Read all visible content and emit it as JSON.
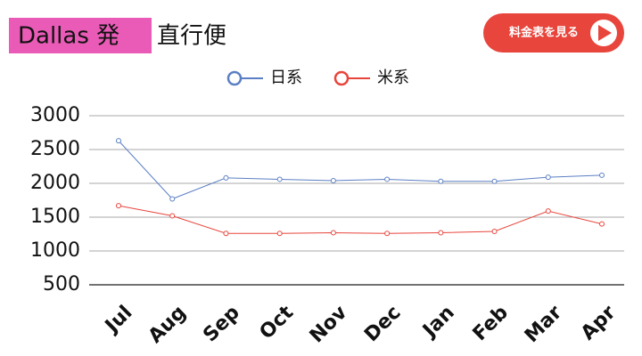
{
  "header": {
    "origin": "Dallas 発",
    "title": "直行便",
    "button": "料金表を見る"
  },
  "chart_data": {
    "type": "line",
    "categories": [
      "Jul",
      "Aug",
      "Sep",
      "Oct",
      "Nov",
      "Dec",
      "Jan",
      "Feb",
      "Mar",
      "Apr"
    ],
    "series": [
      {
        "name": "日系",
        "color": "#5b7fc4",
        "values": [
          2630,
          1770,
          2080,
          2060,
          2040,
          2060,
          2030,
          2030,
          2090,
          2120
        ]
      },
      {
        "name": "米系",
        "color": "#e8453c",
        "values": [
          1670,
          1520,
          1260,
          1260,
          1270,
          1260,
          1270,
          1290,
          1590,
          1400
        ]
      }
    ],
    "ylim": [
      500,
      3000
    ],
    "yticks": [
      500,
      1000,
      1500,
      2000,
      2500,
      3000
    ],
    "grid": true,
    "legend": "top"
  }
}
